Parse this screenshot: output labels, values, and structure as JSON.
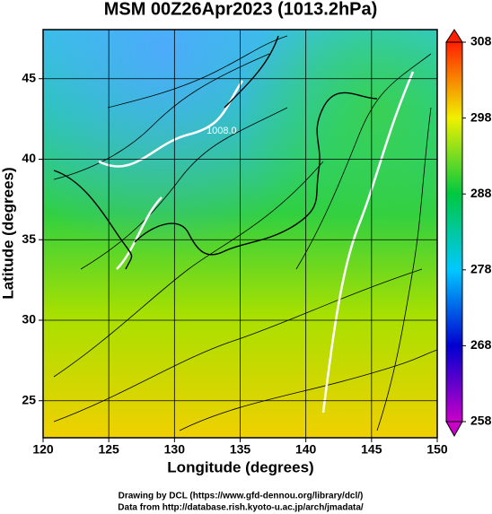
{
  "chart_data": {
    "type": "field",
    "title": "MSM 00Z26Apr2023 (1013.2hPa)",
    "xlabel": "Longitude (degrees)",
    "ylabel": "Latitude  (degrees)",
    "xlim": [
      120,
      150
    ],
    "xticks": [
      120,
      125,
      130,
      135,
      140,
      145,
      150
    ],
    "ylim": [
      22.7,
      48.05
    ],
    "yticks": [
      25,
      30,
      35,
      40,
      45
    ],
    "grid": true,
    "contour_label": "1008.0",
    "colorbar": {
      "lim": [
        258,
        308
      ],
      "ticks": [
        258,
        268,
        278,
        288,
        298,
        308
      ],
      "colors": [
        "#c800c8",
        "#0000d0",
        "#00c8ff",
        "#00c840",
        "#f0f000",
        "#ff2000"
      ]
    },
    "credits": [
      "Drawing by DCL (https://www.gfd-dennou.org/library/dcl/)",
      "Data from http://database.rish.kyoto-u.ac.jp/arch/jmadata/"
    ]
  }
}
